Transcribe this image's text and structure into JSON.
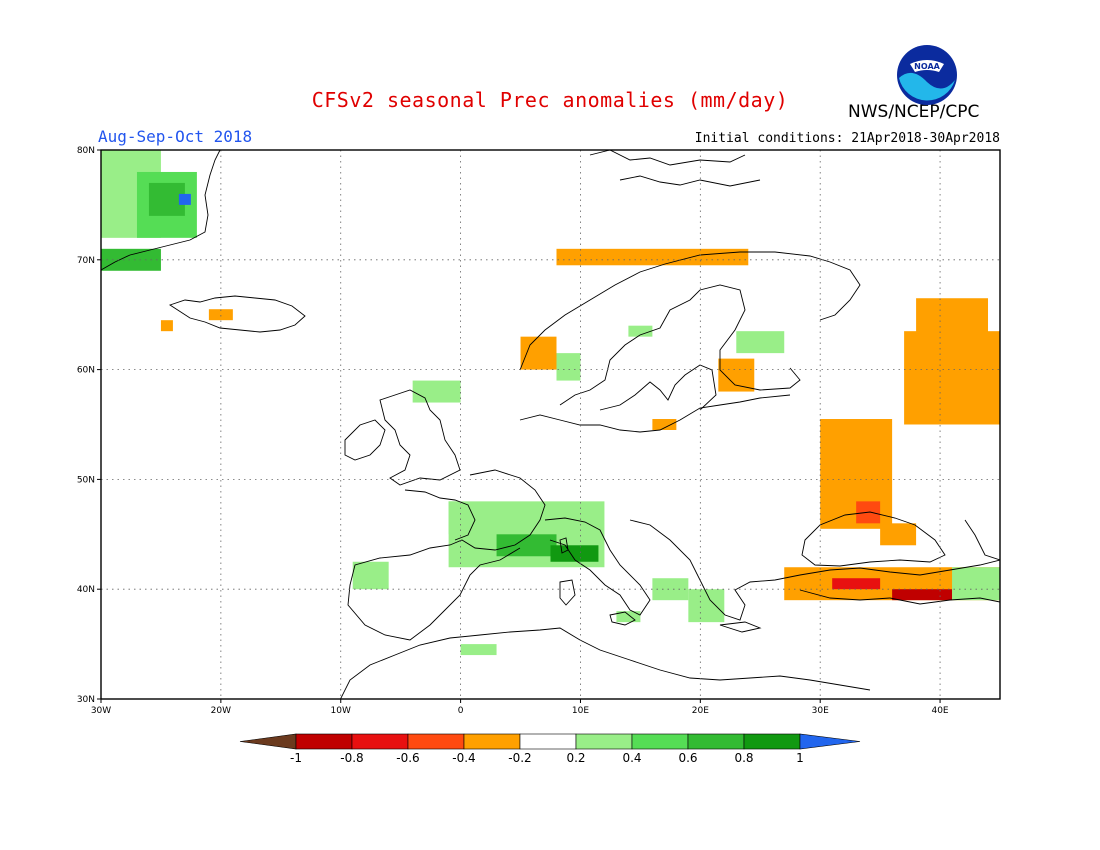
{
  "header": {
    "title": "CFSv2 seasonal Prec anomalies (mm/day)",
    "org": "NWS/NCEP/CPC",
    "period": "Aug-Sep-Oct 2018",
    "initial_conditions": "Initial conditions: 21Apr2018-30Apr2018",
    "logo_text": "NOAA"
  },
  "map": {
    "lon_range": [
      -30,
      45
    ],
    "lat_range": [
      30,
      80
    ],
    "lon_ticks": [
      {
        "value": -30,
        "label": "30W"
      },
      {
        "value": -20,
        "label": "20W"
      },
      {
        "value": -10,
        "label": "10W"
      },
      {
        "value": 0,
        "label": "0"
      },
      {
        "value": 10,
        "label": "10E"
      },
      {
        "value": 20,
        "label": "20E"
      },
      {
        "value": 30,
        "label": "30E"
      },
      {
        "value": 40,
        "label": "40E"
      }
    ],
    "lat_ticks": [
      {
        "value": 30,
        "label": "30N"
      },
      {
        "value": 40,
        "label": "40N"
      },
      {
        "value": 50,
        "label": "50N"
      },
      {
        "value": 60,
        "label": "60N"
      },
      {
        "value": 70,
        "label": "70N"
      },
      {
        "value": 80,
        "label": "80N"
      }
    ],
    "anomaly_cells": [
      {
        "lon": [
          -30,
          -25
        ],
        "lat": [
          72,
          80
        ],
        "value": 0.3
      },
      {
        "lon": [
          -27,
          -22
        ],
        "lat": [
          72,
          78
        ],
        "value": 0.5
      },
      {
        "lon": [
          -26,
          -23
        ],
        "lat": [
          74,
          77
        ],
        "value": 0.7
      },
      {
        "lon": [
          -23.5,
          -22.5
        ],
        "lat": [
          75,
          76
        ],
        "value": 1.1
      },
      {
        "lon": [
          -30,
          -25
        ],
        "lat": [
          69,
          71
        ],
        "value": 0.6
      },
      {
        "lon": [
          -21,
          -19
        ],
        "lat": [
          64.5,
          65.5
        ],
        "value": -0.3
      },
      {
        "lon": [
          -25,
          -24
        ],
        "lat": [
          63.5,
          64.5
        ],
        "value": -0.3
      },
      {
        "lon": [
          8,
          24
        ],
        "lat": [
          69.5,
          71
        ],
        "value": -0.3
      },
      {
        "lon": [
          -4,
          0
        ],
        "lat": [
          57,
          59
        ],
        "value": 0.3
      },
      {
        "lon": [
          8,
          10
        ],
        "lat": [
          59,
          61.5
        ],
        "value": 0.3
      },
      {
        "lon": [
          5,
          8
        ],
        "lat": [
          60,
          63
        ],
        "value": -0.3
      },
      {
        "lon": [
          23,
          27
        ],
        "lat": [
          61.5,
          63.5
        ],
        "value": 0.3
      },
      {
        "lon": [
          14,
          16
        ],
        "lat": [
          63,
          64
        ],
        "value": 0.3
      },
      {
        "lon": [
          21.5,
          24.5
        ],
        "lat": [
          58,
          61
        ],
        "value": -0.3
      },
      {
        "lon": [
          16,
          18
        ],
        "lat": [
          54.5,
          55.5
        ],
        "value": -0.3
      },
      {
        "lon": [
          30,
          36
        ],
        "lat": [
          45.5,
          55.5
        ],
        "value": -0.3
      },
      {
        "lon": [
          33,
          35
        ],
        "lat": [
          46,
          48
        ],
        "value": -0.6
      },
      {
        "lon": [
          35,
          38
        ],
        "lat": [
          44,
          46
        ],
        "value": -0.3
      },
      {
        "lon": [
          37,
          45
        ],
        "lat": [
          55,
          63.5
        ],
        "value": -0.3
      },
      {
        "lon": [
          38,
          44
        ],
        "lat": [
          63,
          66.5
        ],
        "value": -0.3
      },
      {
        "lon": -1,
        "lat": [
          45,
          48
        ],
        "value": 0.3
      },
      {
        "lon": [
          -1,
          12
        ],
        "lat": [
          42,
          48
        ],
        "value": 0.3
      },
      {
        "lon": [
          3,
          8
        ],
        "lat": [
          43,
          45
        ],
        "value": 0.6
      },
      {
        "lon": [
          7.5,
          11.5
        ],
        "lat": [
          42.5,
          44
        ],
        "value": 0.8
      },
      {
        "lon": [
          -9,
          -6
        ],
        "lat": [
          40,
          42.5
        ],
        "value": 0.3
      },
      {
        "lon": [
          16,
          19
        ],
        "lat": [
          39,
          41
        ],
        "value": 0.3
      },
      {
        "lon": [
          19,
          22
        ],
        "lat": [
          37,
          40
        ],
        "value": 0.3
      },
      {
        "lon": [
          27,
          45
        ],
        "lat": [
          39,
          42
        ],
        "value": -0.3
      },
      {
        "lon": [
          31,
          35
        ],
        "lat": [
          40,
          41
        ],
        "value": -0.8
      },
      {
        "lon": [
          36,
          41
        ],
        "lat": [
          39,
          40
        ],
        "value": -0.9
      },
      {
        "lon": [
          41,
          45
        ],
        "lat": [
          39,
          42
        ],
        "value": 0.3
      },
      {
        "lon": [
          0,
          3
        ],
        "lat": [
          34,
          35
        ],
        "value": 0.3
      },
      {
        "lon": [
          13,
          15
        ],
        "lat": [
          37,
          38
        ],
        "value": 0.3
      }
    ]
  },
  "colorbar": {
    "colors": [
      "#6b3a1e",
      "#c00000",
      "#e81010",
      "#ff4a10",
      "#ffa000",
      "#ffffff",
      "#99ee88",
      "#55dd55",
      "#33bb33",
      "#119911",
      "#2266ee"
    ],
    "labels": [
      "-1",
      "-0.8",
      "-0.6",
      "-0.4",
      "-0.2",
      "0.2",
      "0.4",
      "0.6",
      "0.8",
      "1"
    ],
    "bin_edges": [
      -1,
      -0.8,
      -0.6,
      -0.4,
      -0.2,
      0.2,
      0.4,
      0.6,
      0.8,
      1
    ]
  }
}
